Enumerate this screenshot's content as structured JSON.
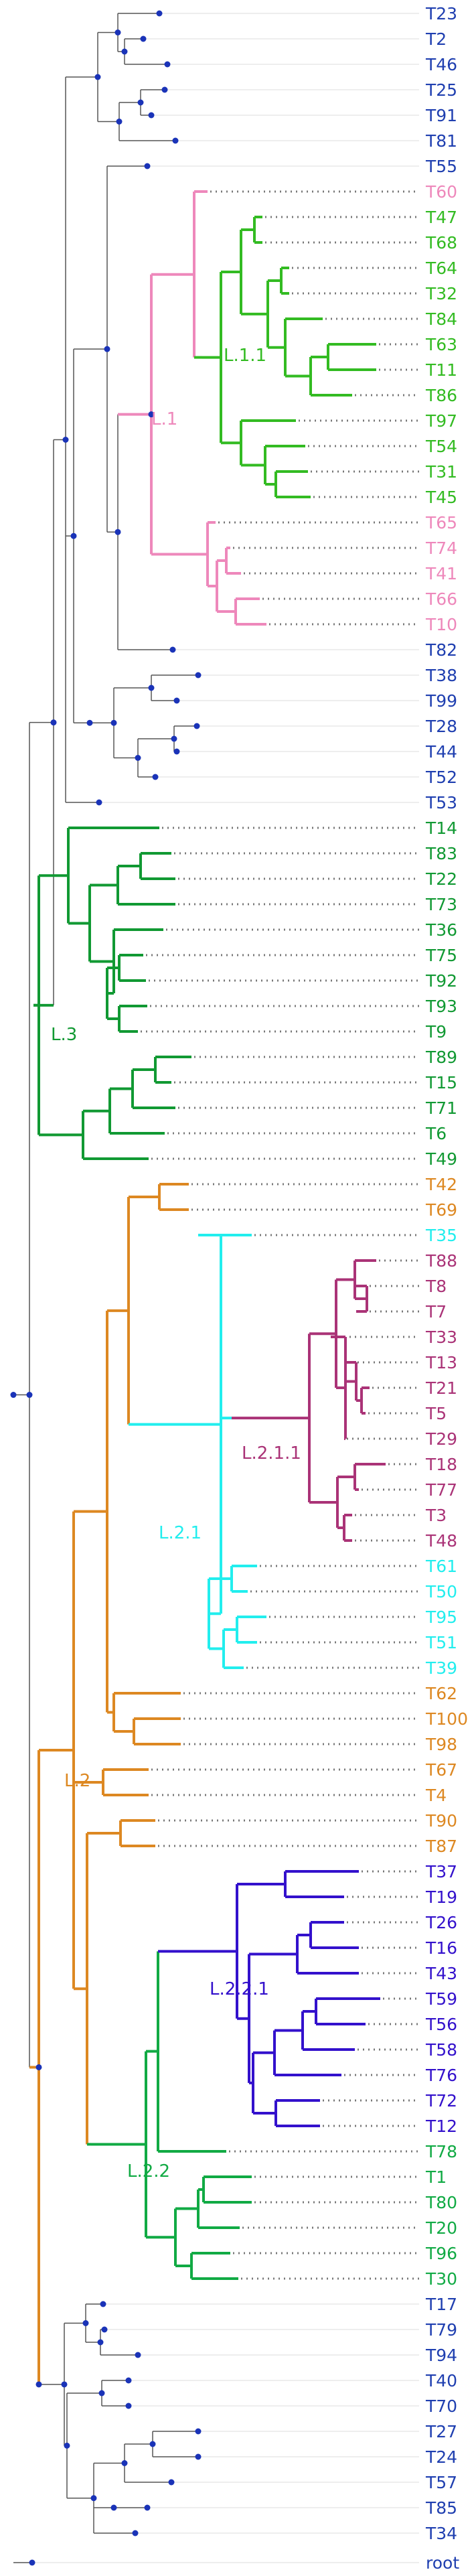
{
  "tree": {
    "node_color": "#1a33b8",
    "default_branch_color": "#555555",
    "guide_color": "#dddddd",
    "default_label_color": "#1f3fb0",
    "colors": {
      "pink": "#ee88bb",
      "lightgreen": "#33bb22",
      "darkgreen": "#119933",
      "orange": "#dd8822",
      "cyan": "#22eeee",
      "purple": "#aa3377",
      "indigo": "#3311cc",
      "green2": "#11aa44",
      "blue": "#1f3fb0"
    },
    "clade_labels": {
      "L1": "L.1",
      "L11": "L.1.1",
      "L3": "L.3",
      "L2": "L.2",
      "L21": "L.2.1",
      "L211": "L.2.1.1",
      "L22": "L.2.2",
      "L221": "L.2.2.1"
    },
    "root_label": "root",
    "tips": [
      {
        "label": "T23",
        "color": "blue"
      },
      {
        "label": "T2",
        "color": "blue"
      },
      {
        "label": "T46",
        "color": "blue"
      },
      {
        "label": "T25",
        "color": "blue"
      },
      {
        "label": "T91",
        "color": "blue"
      },
      {
        "label": "T81",
        "color": "blue"
      },
      {
        "label": "T55",
        "color": "blue"
      },
      {
        "label": "T60",
        "color": "pink"
      },
      {
        "label": "T47",
        "color": "lightgreen"
      },
      {
        "label": "T68",
        "color": "lightgreen"
      },
      {
        "label": "T64",
        "color": "lightgreen"
      },
      {
        "label": "T32",
        "color": "lightgreen"
      },
      {
        "label": "T84",
        "color": "lightgreen"
      },
      {
        "label": "T63",
        "color": "lightgreen"
      },
      {
        "label": "T11",
        "color": "lightgreen"
      },
      {
        "label": "T86",
        "color": "lightgreen"
      },
      {
        "label": "T97",
        "color": "lightgreen"
      },
      {
        "label": "T54",
        "color": "lightgreen"
      },
      {
        "label": "T31",
        "color": "lightgreen"
      },
      {
        "label": "T45",
        "color": "lightgreen"
      },
      {
        "label": "T65",
        "color": "pink"
      },
      {
        "label": "T74",
        "color": "pink"
      },
      {
        "label": "T41",
        "color": "pink"
      },
      {
        "label": "T66",
        "color": "pink"
      },
      {
        "label": "T10",
        "color": "pink"
      },
      {
        "label": "T82",
        "color": "blue"
      },
      {
        "label": "T38",
        "color": "blue"
      },
      {
        "label": "T99",
        "color": "blue"
      },
      {
        "label": "T28",
        "color": "blue"
      },
      {
        "label": "T44",
        "color": "blue"
      },
      {
        "label": "T52",
        "color": "blue"
      },
      {
        "label": "T53",
        "color": "blue"
      },
      {
        "label": "T14",
        "color": "darkgreen"
      },
      {
        "label": "T83",
        "color": "darkgreen"
      },
      {
        "label": "T22",
        "color": "darkgreen"
      },
      {
        "label": "T73",
        "color": "darkgreen"
      },
      {
        "label": "T36",
        "color": "darkgreen"
      },
      {
        "label": "T75",
        "color": "darkgreen"
      },
      {
        "label": "T92",
        "color": "darkgreen"
      },
      {
        "label": "T93",
        "color": "darkgreen"
      },
      {
        "label": "T9",
        "color": "darkgreen"
      },
      {
        "label": "T89",
        "color": "darkgreen"
      },
      {
        "label": "T15",
        "color": "darkgreen"
      },
      {
        "label": "T71",
        "color": "darkgreen"
      },
      {
        "label": "T6",
        "color": "darkgreen"
      },
      {
        "label": "T49",
        "color": "darkgreen"
      },
      {
        "label": "T42",
        "color": "orange"
      },
      {
        "label": "T69",
        "color": "orange"
      },
      {
        "label": "T35",
        "color": "cyan"
      },
      {
        "label": "T88",
        "color": "purple"
      },
      {
        "label": "T8",
        "color": "purple"
      },
      {
        "label": "T7",
        "color": "purple"
      },
      {
        "label": "T33",
        "color": "purple"
      },
      {
        "label": "T13",
        "color": "purple"
      },
      {
        "label": "T21",
        "color": "purple"
      },
      {
        "label": "T5",
        "color": "purple"
      },
      {
        "label": "T29",
        "color": "purple"
      },
      {
        "label": "T18",
        "color": "purple"
      },
      {
        "label": "T77",
        "color": "purple"
      },
      {
        "label": "T3",
        "color": "purple"
      },
      {
        "label": "T48",
        "color": "purple"
      },
      {
        "label": "T61",
        "color": "cyan"
      },
      {
        "label": "T50",
        "color": "cyan"
      },
      {
        "label": "T95",
        "color": "cyan"
      },
      {
        "label": "T51",
        "color": "cyan"
      },
      {
        "label": "T39",
        "color": "cyan"
      },
      {
        "label": "T62",
        "color": "orange"
      },
      {
        "label": "T100",
        "color": "orange"
      },
      {
        "label": "T98",
        "color": "orange"
      },
      {
        "label": "T67",
        "color": "orange"
      },
      {
        "label": "T4",
        "color": "orange"
      },
      {
        "label": "T90",
        "color": "orange"
      },
      {
        "label": "T87",
        "color": "orange"
      },
      {
        "label": "T37",
        "color": "indigo"
      },
      {
        "label": "T19",
        "color": "indigo"
      },
      {
        "label": "T26",
        "color": "indigo"
      },
      {
        "label": "T16",
        "color": "indigo"
      },
      {
        "label": "T43",
        "color": "indigo"
      },
      {
        "label": "T59",
        "color": "indigo"
      },
      {
        "label": "T56",
        "color": "indigo"
      },
      {
        "label": "T58",
        "color": "indigo"
      },
      {
        "label": "T76",
        "color": "indigo"
      },
      {
        "label": "T72",
        "color": "indigo"
      },
      {
        "label": "T12",
        "color": "indigo"
      },
      {
        "label": "T78",
        "color": "green2"
      },
      {
        "label": "T1",
        "color": "green2"
      },
      {
        "label": "T80",
        "color": "green2"
      },
      {
        "label": "T20",
        "color": "green2"
      },
      {
        "label": "T96",
        "color": "green2"
      },
      {
        "label": "T30",
        "color": "green2"
      },
      {
        "label": "T17",
        "color": "blue"
      },
      {
        "label": "T79",
        "color": "blue"
      },
      {
        "label": "T94",
        "color": "blue"
      },
      {
        "label": "T40",
        "color": "blue"
      },
      {
        "label": "T70",
        "color": "blue"
      },
      {
        "label": "T27",
        "color": "blue"
      },
      {
        "label": "T24",
        "color": "blue"
      },
      {
        "label": "T57",
        "color": "blue"
      },
      {
        "label": "T85",
        "color": "blue"
      },
      {
        "label": "T34",
        "color": "blue"
      }
    ]
  }
}
